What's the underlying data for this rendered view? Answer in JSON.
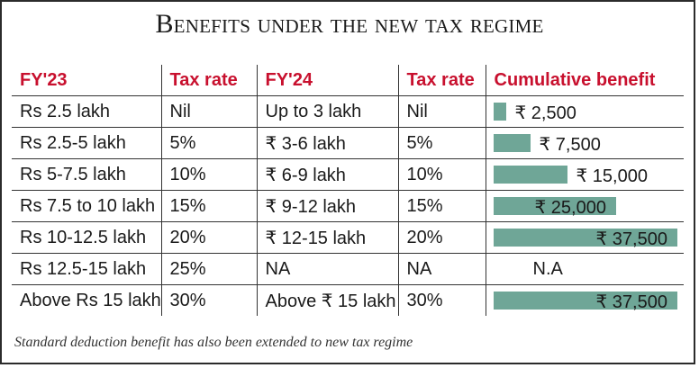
{
  "title": "Benefits under the new tax regime",
  "headers": [
    "FY'23",
    "Tax rate",
    "FY'24",
    "Tax rate",
    "Cumulative benefit"
  ],
  "rows": [
    {
      "fy23": "Rs 2.5 lakh",
      "rate23": "Nil",
      "fy24": "Up to 3 lakh",
      "rate24": "Nil",
      "benefit": "₹ 2,500"
    },
    {
      "fy23": "Rs 2.5-5 lakh",
      "rate23": "5%",
      "fy24": "₹ 3-6 lakh",
      "rate24": "5%",
      "benefit": "₹ 7,500"
    },
    {
      "fy23": "Rs 5-7.5 lakh",
      "rate23": "10%",
      "fy24": "₹ 6-9 lakh",
      "rate24": "10%",
      "benefit": "₹ 15,000"
    },
    {
      "fy23": "Rs 7.5 to 10 lakh",
      "rate23": "15%",
      "fy24": "₹ 9-12 lakh",
      "rate24": "15%",
      "benefit": "₹ 25,000"
    },
    {
      "fy23": "Rs 10-12.5 lakh",
      "rate23": "20%",
      "fy24": "₹ 12-15 lakh",
      "rate24": "20%",
      "benefit": "₹ 37,500"
    },
    {
      "fy23": "Rs 12.5-15 lakh",
      "rate23": "25%",
      "fy24": "NA",
      "rate24": "NA",
      "benefit": "N.A"
    },
    {
      "fy23": "Above Rs 15 lakh",
      "rate23": "30%",
      "fy24": "Above ₹ 15 lakh",
      "rate24": "30%",
      "benefit": "₹ 37,500"
    }
  ],
  "footnote": "Standard deduction benefit has also been extended to new tax regime",
  "colors": {
    "header": "#c8102e",
    "bar": "#6fa697"
  },
  "chart_data": {
    "type": "bar",
    "categories": [
      "Rs 2.5 lakh",
      "Rs 2.5-5 lakh",
      "Rs 5-7.5 lakh",
      "Rs 7.5 to 10 lakh",
      "Rs 10-12.5 lakh",
      "Rs 12.5-15 lakh",
      "Above Rs 15 lakh"
    ],
    "values": [
      2500,
      7500,
      15000,
      25000,
      37500,
      null,
      37500
    ],
    "title": "Benefits under the new tax regime",
    "ylabel": "Cumulative benefit",
    "ylim": [
      0,
      37500
    ]
  }
}
